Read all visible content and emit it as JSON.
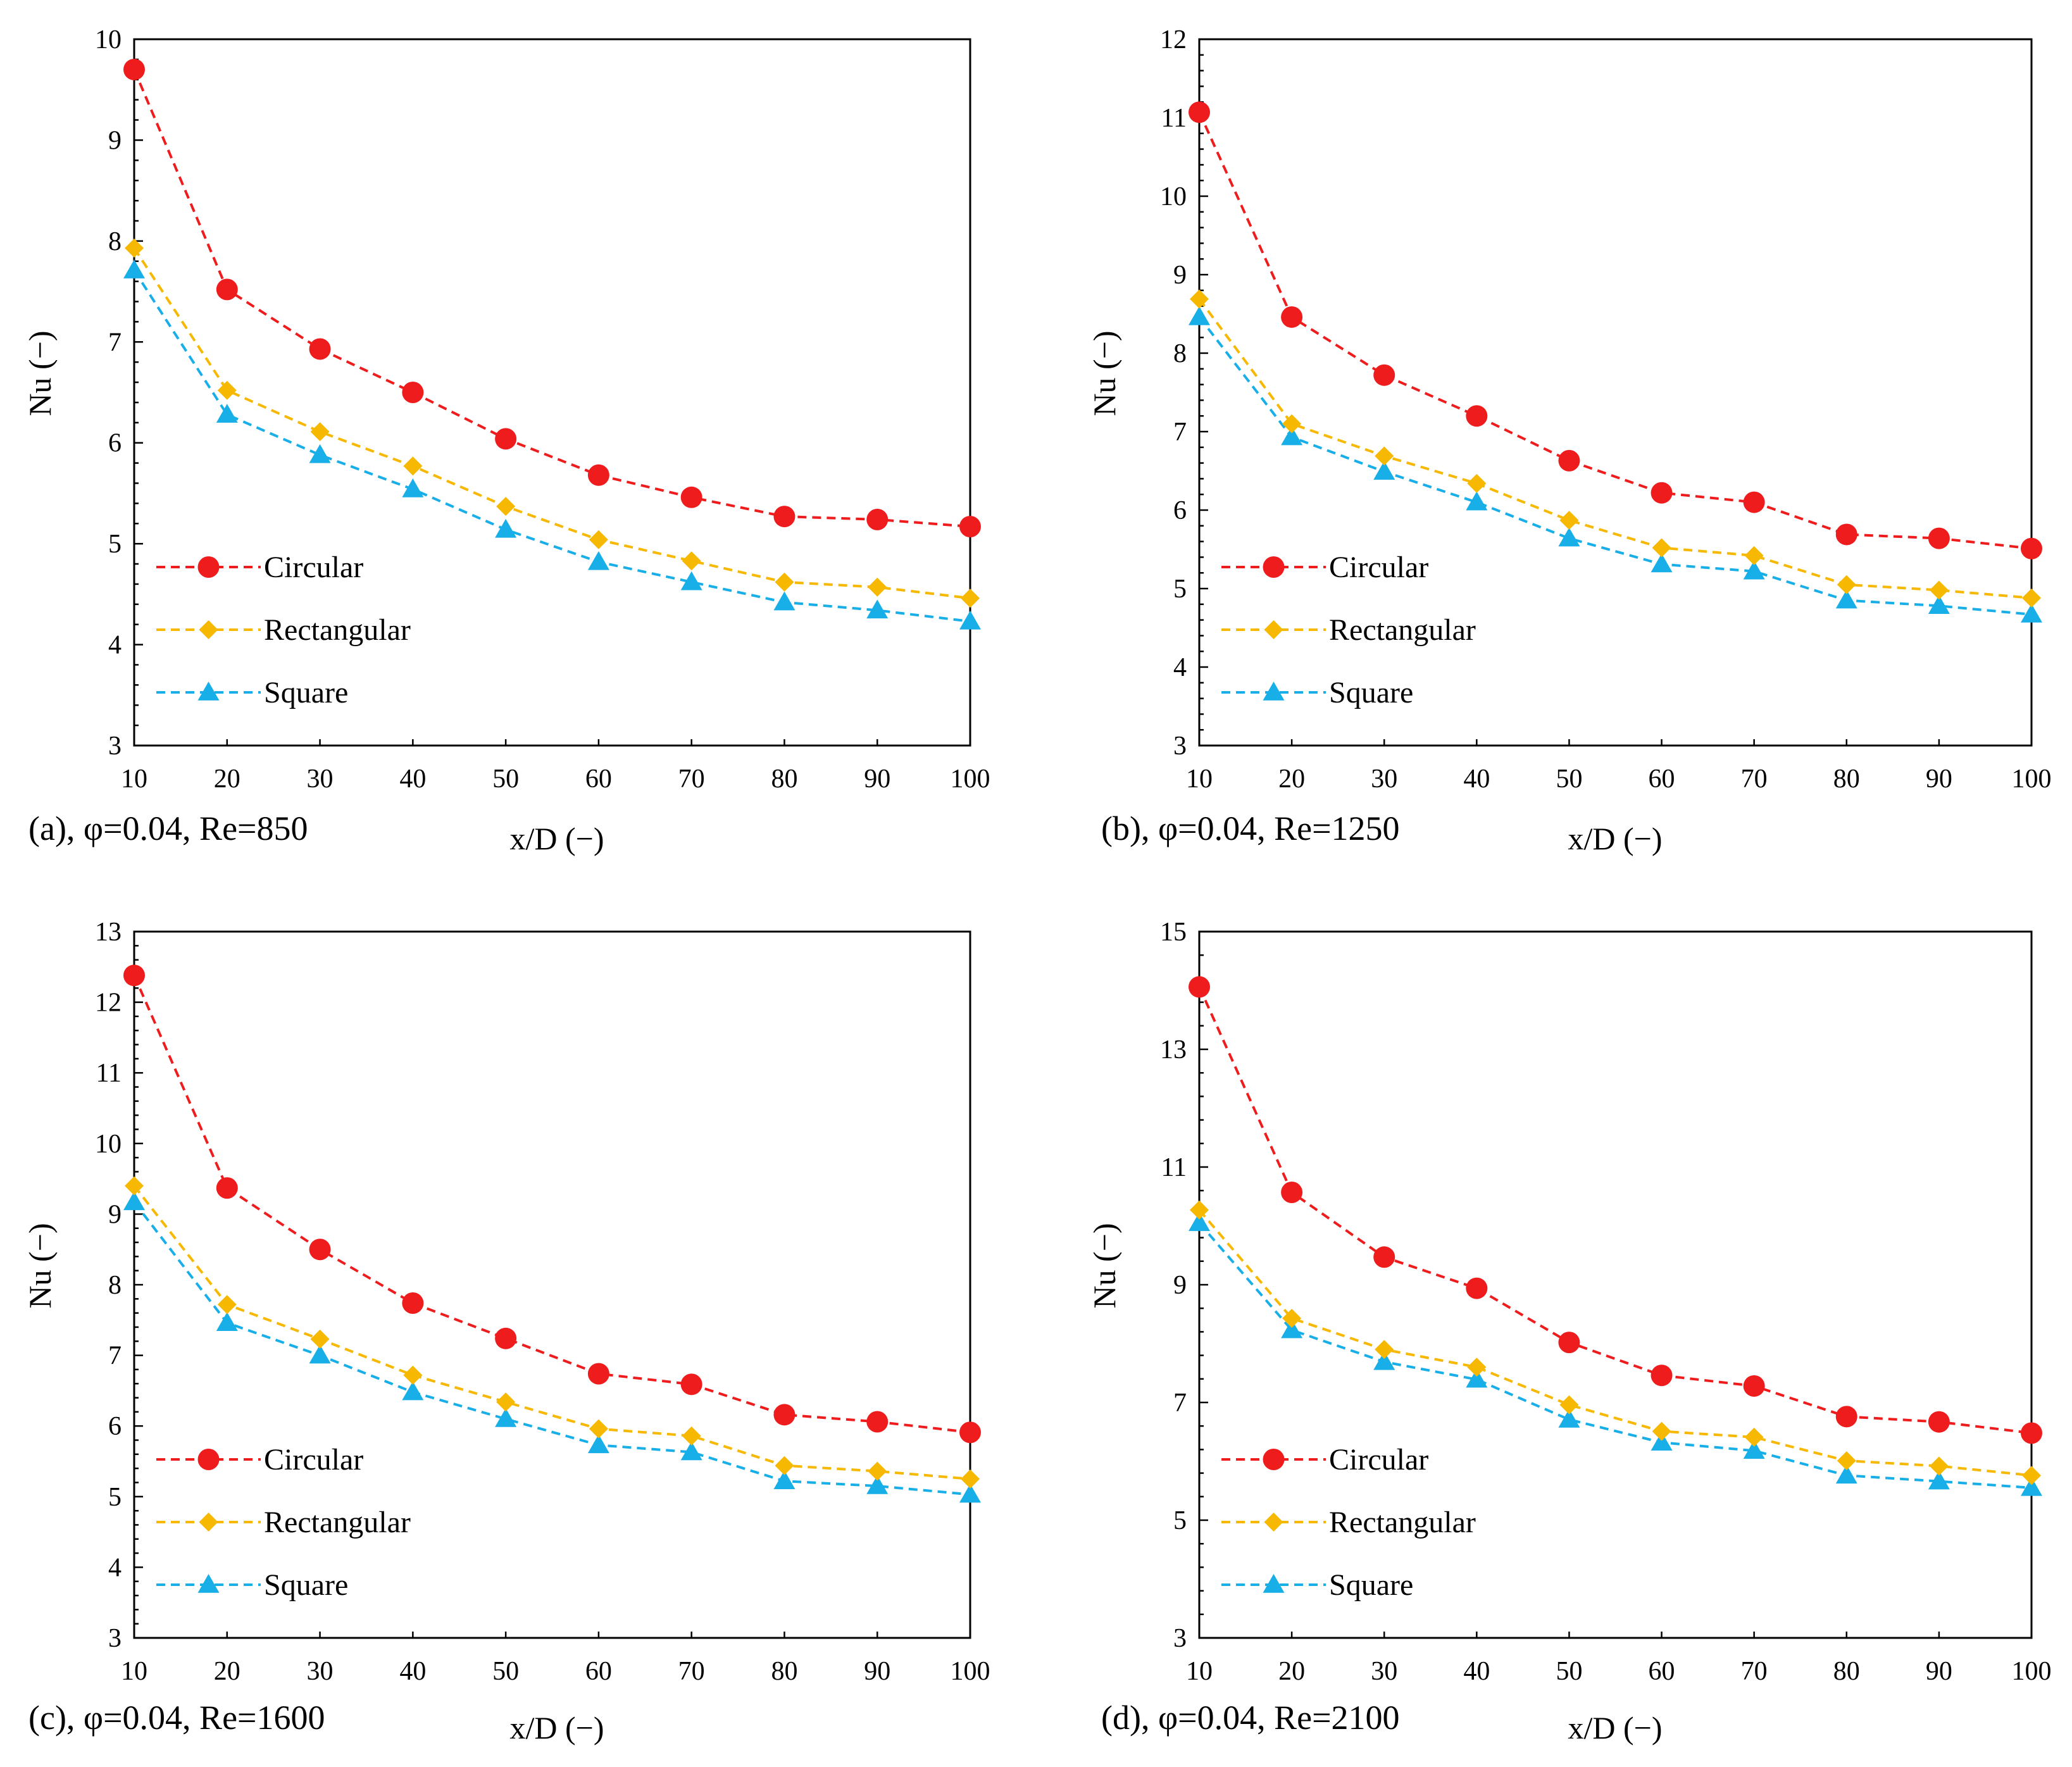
{
  "chart_data": [
    {
      "type": "line",
      "caption": "(a), φ=0.04, Re=850",
      "xlabel": "x/D (−)",
      "ylabel": "Nu (−)",
      "xlim": [
        10,
        100
      ],
      "ylim": [
        3,
        10
      ],
      "x": [
        10,
        20,
        30,
        40,
        50,
        60,
        70,
        80,
        90,
        100
      ],
      "yticks": [
        "3",
        "4",
        "5",
        "6",
        "7",
        "8",
        "9",
        "10"
      ],
      "xticks": [
        "10",
        "20",
        "30",
        "40",
        "50",
        "60",
        "70",
        "80",
        "90",
        "100"
      ],
      "series": [
        {
          "name": "Circular",
          "marker": "circle",
          "color": "#ee1c1c",
          "values": [
            9.7,
            7.52,
            6.93,
            6.5,
            6.04,
            5.68,
            5.46,
            5.27,
            5.24,
            5.17
          ]
        },
        {
          "name": "Rectangular",
          "marker": "diamond",
          "color": "#f6b800",
          "values": [
            7.93,
            6.52,
            6.11,
            5.77,
            5.37,
            5.04,
            4.83,
            4.62,
            4.57,
            4.46
          ]
        },
        {
          "name": "Square",
          "marker": "triangle",
          "color": "#18aee8",
          "values": [
            7.71,
            6.28,
            5.88,
            5.54,
            5.14,
            4.82,
            4.62,
            4.42,
            4.34,
            4.23
          ]
        }
      ]
    },
    {
      "type": "line",
      "caption": "(b), φ=0.04, Re=1250",
      "xlabel": "x/D (−)",
      "ylabel": "Nu (−)",
      "xlim": [
        10,
        100
      ],
      "ylim": [
        3,
        12
      ],
      "x": [
        10,
        20,
        30,
        40,
        50,
        60,
        70,
        80,
        90,
        100
      ],
      "yticks": [
        "3",
        "4",
        "5",
        "6",
        "7",
        "8",
        "9",
        "10",
        "11",
        "12"
      ],
      "xticks": [
        "10",
        "20",
        "30",
        "40",
        "50",
        "60",
        "70",
        "80",
        "90",
        "100"
      ],
      "series": [
        {
          "name": "Circular",
          "marker": "circle",
          "color": "#ee1c1c",
          "values": [
            11.07,
            8.46,
            7.72,
            7.2,
            6.63,
            6.22,
            6.1,
            5.69,
            5.64,
            5.51
          ]
        },
        {
          "name": "Rectangular",
          "marker": "diamond",
          "color": "#f6b800",
          "values": [
            8.69,
            7.1,
            6.69,
            6.34,
            5.87,
            5.52,
            5.42,
            5.05,
            4.98,
            4.88
          ]
        },
        {
          "name": "Square",
          "marker": "triangle",
          "color": "#18aee8",
          "values": [
            8.46,
            6.93,
            6.49,
            6.1,
            5.64,
            5.31,
            5.22,
            4.85,
            4.78,
            4.67
          ]
        }
      ]
    },
    {
      "type": "line",
      "caption": "(c), φ=0.04, Re=1600",
      "xlabel": "x/D (−)",
      "ylabel": "Nu (−)",
      "xlim": [
        10,
        100
      ],
      "ylim": [
        3,
        13
      ],
      "x": [
        10,
        20,
        30,
        40,
        50,
        60,
        70,
        80,
        90,
        100
      ],
      "yticks": [
        "3",
        "4",
        "5",
        "6",
        "7",
        "8",
        "9",
        "10",
        "11",
        "12",
        "13"
      ],
      "xticks": [
        "10",
        "20",
        "30",
        "40",
        "50",
        "60",
        "70",
        "80",
        "90",
        "100"
      ],
      "series": [
        {
          "name": "Circular",
          "marker": "circle",
          "color": "#ee1c1c",
          "values": [
            12.38,
            9.37,
            8.5,
            7.74,
            7.24,
            6.74,
            6.59,
            6.16,
            6.06,
            5.91
          ]
        },
        {
          "name": "Rectangular",
          "marker": "diamond",
          "color": "#f6b800",
          "values": [
            9.4,
            7.72,
            7.23,
            6.72,
            6.34,
            5.96,
            5.86,
            5.44,
            5.36,
            5.25
          ]
        },
        {
          "name": "Square",
          "marker": "triangle",
          "color": "#18aee8",
          "values": [
            9.17,
            7.46,
            7.0,
            6.48,
            6.1,
            5.73,
            5.63,
            5.22,
            5.15,
            5.03
          ]
        }
      ]
    },
    {
      "type": "line",
      "caption": "(d), φ=0.04, Re=2100",
      "xlabel": "x/D (−)",
      "ylabel": "Nu (−)",
      "xlim": [
        10,
        100
      ],
      "ylim": [
        3,
        15
      ],
      "x": [
        10,
        20,
        30,
        40,
        50,
        60,
        70,
        80,
        90,
        100
      ],
      "yticks": [
        "3",
        "5",
        "7",
        "9",
        "11",
        "13",
        "15"
      ],
      "xticks": [
        "10",
        "20",
        "30",
        "40",
        "50",
        "60",
        "70",
        "80",
        "90",
        "100"
      ],
      "series": [
        {
          "name": "Circular",
          "marker": "circle",
          "color": "#ee1c1c",
          "values": [
            14.06,
            10.57,
            9.47,
            8.94,
            8.02,
            7.46,
            7.28,
            6.76,
            6.67,
            6.48
          ]
        },
        {
          "name": "Rectangular",
          "marker": "diamond",
          "color": "#f6b800",
          "values": [
            10.27,
            8.43,
            7.9,
            7.6,
            6.96,
            6.51,
            6.41,
            6.01,
            5.92,
            5.76
          ]
        },
        {
          "name": "Square",
          "marker": "triangle",
          "color": "#18aee8",
          "values": [
            10.05,
            8.23,
            7.69,
            7.39,
            6.71,
            6.32,
            6.18,
            5.76,
            5.66,
            5.55
          ]
        }
      ]
    }
  ]
}
